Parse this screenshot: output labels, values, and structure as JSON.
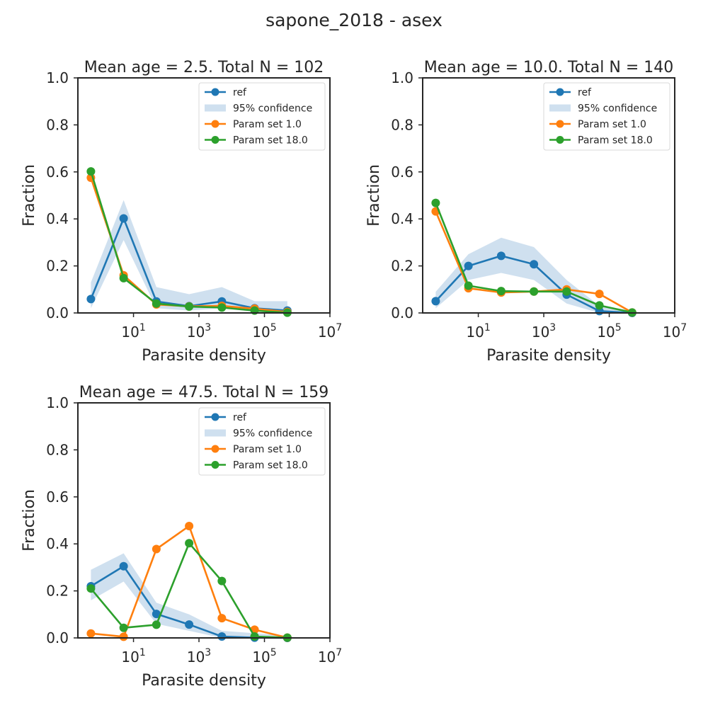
{
  "figure": {
    "suptitle": "sapone_2018 - asex"
  },
  "chart_data": [
    {
      "type": "line",
      "title": "Mean age = 2.5.  Total N = 102",
      "xlabel": "Parasite density",
      "ylabel": "Fraction",
      "xscale": "log",
      "xlim": [
        0.2,
        10000000
      ],
      "ylim": [
        0,
        1
      ],
      "x_ticks": [
        "10^1",
        "10^3",
        "10^5",
        "10^7"
      ],
      "y_ticks": [
        "0.0",
        "0.2",
        "0.4",
        "0.6",
        "0.8",
        "1.0"
      ],
      "grid": false,
      "legend_position": "upper right",
      "legend": [
        "ref",
        "95% confidence",
        "Param set 1.0",
        "Param set 18.0"
      ],
      "x": [
        0.5,
        5,
        50,
        500,
        5000,
        50000,
        500000
      ],
      "series": [
        {
          "name": "ref",
          "values": [
            0.059,
            0.402,
            0.049,
            0.029,
            0.049,
            0.02,
            0.01
          ],
          "color": "#1f77b4"
        },
        {
          "name": "Param set 1.0",
          "values": [
            0.575,
            0.16,
            0.036,
            0.028,
            0.03,
            0.018,
            0.004
          ],
          "color": "#ff7f0e"
        },
        {
          "name": "Param set 18.0",
          "values": [
            0.602,
            0.148,
            0.04,
            0.027,
            0.023,
            0.01,
            0.001
          ],
          "color": "#2ca02c"
        }
      ],
      "confidence": {
        "name": "95% confidence",
        "lower": [
          0.02,
          0.31,
          0.02,
          0.01,
          0.02,
          0.005,
          0.0
        ],
        "upper": [
          0.13,
          0.48,
          0.11,
          0.08,
          0.11,
          0.05,
          0.05
        ],
        "color": "#cfe0ef"
      }
    },
    {
      "type": "line",
      "title": "Mean age = 10.0.  Total N = 140",
      "xlabel": "Parasite density",
      "ylabel": "Fraction",
      "xscale": "log",
      "xlim": [
        0.2,
        10000000
      ],
      "ylim": [
        0,
        1
      ],
      "x_ticks": [
        "10^1",
        "10^3",
        "10^5",
        "10^7"
      ],
      "y_ticks": [
        "0.0",
        "0.2",
        "0.4",
        "0.6",
        "0.8",
        "1.0"
      ],
      "grid": false,
      "legend_position": "upper right",
      "legend": [
        "ref",
        "95% confidence",
        "Param set 1.0",
        "Param set 18.0"
      ],
      "x": [
        0.5,
        5,
        50,
        500,
        5000,
        50000,
        500000
      ],
      "series": [
        {
          "name": "ref",
          "values": [
            0.05,
            0.2,
            0.243,
            0.207,
            0.078,
            0.008,
            0.0
          ],
          "color": "#1f77b4"
        },
        {
          "name": "Param set 1.0",
          "values": [
            0.432,
            0.105,
            0.087,
            0.091,
            0.1,
            0.081,
            0.002
          ],
          "color": "#ff7f0e"
        },
        {
          "name": "Param set 18.0",
          "values": [
            0.468,
            0.116,
            0.093,
            0.091,
            0.091,
            0.032,
            0.002
          ],
          "color": "#2ca02c"
        }
      ],
      "confidence": {
        "name": "95% confidence",
        "lower": [
          0.02,
          0.14,
          0.17,
          0.14,
          0.04,
          0.0,
          0.0
        ],
        "upper": [
          0.09,
          0.25,
          0.32,
          0.28,
          0.14,
          0.03,
          0.01
        ],
        "color": "#cfe0ef"
      }
    },
    {
      "type": "line",
      "title": "Mean age = 47.5.  Total N = 159",
      "xlabel": "Parasite density",
      "ylabel": "Fraction",
      "xscale": "log",
      "xlim": [
        0.2,
        10000000
      ],
      "ylim": [
        0,
        1
      ],
      "x_ticks": [
        "10^1",
        "10^3",
        "10^5",
        "10^7"
      ],
      "y_ticks": [
        "0.0",
        "0.2",
        "0.4",
        "0.6",
        "0.8",
        "1.0"
      ],
      "grid": false,
      "legend_position": "upper right",
      "legend": [
        "ref",
        "95% confidence",
        "Param set 1.0",
        "Param set 18.0"
      ],
      "x": [
        0.5,
        5,
        50,
        500,
        5000,
        50000,
        500000
      ],
      "series": [
        {
          "name": "ref",
          "values": [
            0.22,
            0.305,
            0.102,
            0.057,
            0.006,
            0.001,
            0.0
          ],
          "color": "#1f77b4"
        },
        {
          "name": "Param set 1.0",
          "values": [
            0.019,
            0.005,
            0.378,
            0.476,
            0.084,
            0.035,
            0.001
          ],
          "color": "#ff7f0e"
        },
        {
          "name": "Param set 18.0",
          "values": [
            0.21,
            0.043,
            0.056,
            0.403,
            0.242,
            0.006,
            0.001
          ],
          "color": "#2ca02c"
        }
      ],
      "confidence": {
        "name": "95% confidence",
        "lower": [
          0.16,
          0.24,
          0.06,
          0.03,
          0.0,
          0.0,
          0.0
        ],
        "upper": [
          0.29,
          0.36,
          0.15,
          0.1,
          0.03,
          0.02,
          0.01
        ],
        "color": "#cfe0ef"
      }
    }
  ]
}
